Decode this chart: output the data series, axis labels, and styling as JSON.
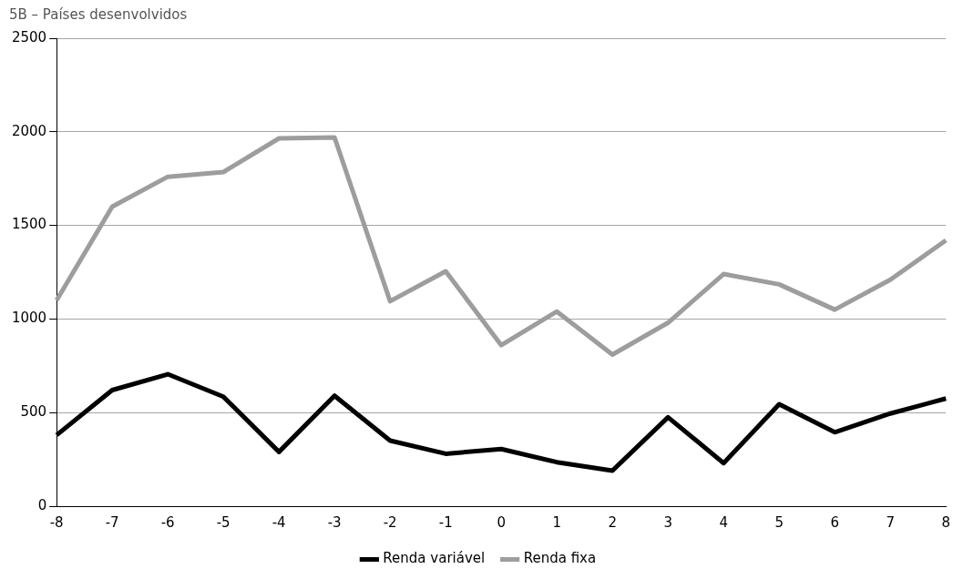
{
  "chart_data": {
    "type": "line",
    "title": "5B – Países desenvolvidos",
    "categories": [
      "-8",
      "-7",
      "-6",
      "-5",
      "-4",
      "-3",
      "-2",
      "-1",
      "0",
      "1",
      "2",
      "3",
      "4",
      "5",
      "6",
      "7",
      "8"
    ],
    "series": [
      {
        "name": "Renda variável",
        "color": "#000000",
        "values": [
          380,
          620,
          705,
          585,
          290,
          590,
          350,
          280,
          305,
          235,
          190,
          475,
          230,
          545,
          395,
          495,
          575
        ]
      },
      {
        "name": "Renda fixa",
        "color": "#9d9d9d",
        "values": [
          1100,
          1600,
          1760,
          1785,
          1965,
          1970,
          1095,
          1255,
          860,
          1040,
          810,
          980,
          1240,
          1185,
          1050,
          1210,
          1420
        ]
      }
    ],
    "ylim": [
      0,
      2500
    ],
    "yticks": [
      0,
      500,
      1000,
      1500,
      2000,
      2500
    ],
    "grid": "y",
    "legend": "bottom",
    "marker": "none",
    "line_style": "solid"
  }
}
